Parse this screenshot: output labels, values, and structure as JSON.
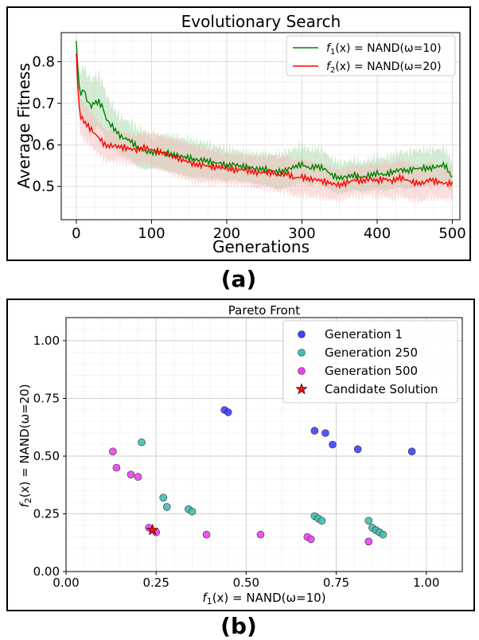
{
  "chart_data": [
    {
      "type": "line",
      "panel_label": "(a)",
      "title": "Evolutionary Search",
      "xlabel": "Generations",
      "ylabel": "Average Fitness",
      "xlim": [
        -20,
        510
      ],
      "ylim": [
        0.42,
        0.87
      ],
      "xticks": [
        0,
        100,
        200,
        300,
        400,
        500
      ],
      "xtick_labels": [
        "0",
        "100",
        "200",
        "300",
        "400",
        "500"
      ],
      "yticks": [
        0.5,
        0.6,
        0.7,
        0.8
      ],
      "ytick_labels": [
        "0.5",
        "0.6",
        "0.7",
        "0.8"
      ],
      "grid": true,
      "legend_position": "top-right",
      "series": [
        {
          "name_prefix": "f",
          "name_sub": "1",
          "name_suffix": "(x) = NAND(ω=10)",
          "color": "#008000",
          "band_color": "#9fd49f",
          "x": [
            0,
            3,
            6,
            10,
            15,
            20,
            25,
            30,
            35,
            40,
            50,
            60,
            70,
            80,
            90,
            100,
            110,
            120,
            130,
            140,
            150,
            160,
            170,
            180,
            190,
            200,
            210,
            220,
            230,
            240,
            250,
            260,
            270,
            280,
            290,
            300,
            310,
            320,
            330,
            340,
            350,
            360,
            370,
            380,
            390,
            400,
            410,
            420,
            430,
            440,
            450,
            460,
            470,
            480,
            490,
            500
          ],
          "y": [
            0.85,
            0.75,
            0.72,
            0.73,
            0.7,
            0.69,
            0.7,
            0.7,
            0.69,
            0.66,
            0.64,
            0.62,
            0.615,
            0.6,
            0.59,
            0.585,
            0.585,
            0.58,
            0.575,
            0.57,
            0.565,
            0.56,
            0.56,
            0.555,
            0.555,
            0.55,
            0.555,
            0.55,
            0.55,
            0.545,
            0.545,
            0.54,
            0.535,
            0.54,
            0.545,
            0.55,
            0.54,
            0.545,
            0.54,
            0.525,
            0.52,
            0.525,
            0.53,
            0.525,
            0.53,
            0.535,
            0.53,
            0.535,
            0.54,
            0.535,
            0.54,
            0.54,
            0.54,
            0.545,
            0.55,
            0.52
          ],
          "band": [
            0.01,
            0.03,
            0.05,
            0.05,
            0.06,
            0.06,
            0.06,
            0.06,
            0.06,
            0.06,
            0.05,
            0.05,
            0.05,
            0.05,
            0.05,
            0.04,
            0.04,
            0.04,
            0.04,
            0.04,
            0.04,
            0.04,
            0.04,
            0.04,
            0.04,
            0.04,
            0.04,
            0.04,
            0.04,
            0.04,
            0.04,
            0.04,
            0.04,
            0.04,
            0.04,
            0.04,
            0.04,
            0.04,
            0.04,
            0.04,
            0.04,
            0.04,
            0.04,
            0.04,
            0.04,
            0.04,
            0.04,
            0.04,
            0.04,
            0.04,
            0.04,
            0.04,
            0.04,
            0.04,
            0.04,
            0.04
          ]
        },
        {
          "name_prefix": "f",
          "name_sub": "2",
          "name_suffix": "(x) = NAND(ω=20)",
          "color": "#ff0000",
          "band_color": "#f7b8b8",
          "x": [
            0,
            3,
            6,
            10,
            15,
            20,
            25,
            30,
            35,
            40,
            50,
            60,
            70,
            80,
            90,
            100,
            110,
            120,
            130,
            140,
            150,
            160,
            170,
            180,
            190,
            200,
            210,
            220,
            230,
            240,
            250,
            260,
            270,
            280,
            290,
            300,
            310,
            320,
            330,
            340,
            350,
            360,
            370,
            380,
            390,
            400,
            410,
            420,
            430,
            440,
            450,
            460,
            470,
            480,
            490,
            500
          ],
          "y": [
            0.82,
            0.7,
            0.67,
            0.66,
            0.65,
            0.64,
            0.63,
            0.62,
            0.61,
            0.6,
            0.6,
            0.595,
            0.59,
            0.585,
            0.59,
            0.585,
            0.58,
            0.575,
            0.57,
            0.565,
            0.56,
            0.555,
            0.555,
            0.55,
            0.55,
            0.545,
            0.54,
            0.54,
            0.535,
            0.53,
            0.53,
            0.53,
            0.525,
            0.53,
            0.52,
            0.525,
            0.52,
            0.52,
            0.515,
            0.51,
            0.505,
            0.51,
            0.515,
            0.51,
            0.515,
            0.51,
            0.515,
            0.51,
            0.52,
            0.515,
            0.51,
            0.51,
            0.52,
            0.515,
            0.51,
            0.51
          ],
          "band": [
            0.01,
            0.03,
            0.04,
            0.04,
            0.04,
            0.04,
            0.04,
            0.04,
            0.04,
            0.04,
            0.04,
            0.04,
            0.04,
            0.04,
            0.04,
            0.04,
            0.04,
            0.04,
            0.04,
            0.04,
            0.04,
            0.04,
            0.04,
            0.04,
            0.04,
            0.04,
            0.04,
            0.04,
            0.04,
            0.04,
            0.04,
            0.04,
            0.04,
            0.04,
            0.04,
            0.04,
            0.04,
            0.04,
            0.04,
            0.04,
            0.04,
            0.04,
            0.04,
            0.04,
            0.04,
            0.04,
            0.04,
            0.04,
            0.04,
            0.04,
            0.04,
            0.04,
            0.04,
            0.04,
            0.04,
            0.04
          ]
        }
      ]
    },
    {
      "type": "scatter",
      "panel_label": "(b)",
      "title": "Pareto Front",
      "xlabel_prefix": "f",
      "xlabel_sub": "1",
      "xlabel_suffix": "(x) = NAND(ω=10)",
      "ylabel_prefix": "f",
      "ylabel_sub": "2",
      "ylabel_suffix": "(x) = NAND(ω=20)",
      "xlim": [
        0.0,
        1.1
      ],
      "ylim": [
        0.0,
        1.1
      ],
      "xticks": [
        0.0,
        0.25,
        0.5,
        0.75,
        1.0
      ],
      "xtick_labels": [
        "0.00",
        "0.25",
        "0.50",
        "0.75",
        "1.00"
      ],
      "yticks": [
        0.0,
        0.25,
        0.5,
        0.75,
        1.0
      ],
      "ytick_labels": [
        "0.00",
        "0.25",
        "0.50",
        "0.75",
        "1.00"
      ],
      "grid": true,
      "legend_position": "top-right",
      "series": [
        {
          "name": "Generation 1",
          "marker": "circle",
          "color": "#4040ff",
          "points": [
            [
              0.44,
              0.7
            ],
            [
              0.45,
              0.69
            ],
            [
              0.69,
              0.61
            ],
            [
              0.72,
              0.6
            ],
            [
              0.74,
              0.55
            ],
            [
              0.81,
              0.53
            ],
            [
              0.96,
              0.52
            ]
          ]
        },
        {
          "name": "Generation 250",
          "marker": "circle",
          "color": "#40c0b0",
          "points": [
            [
              0.21,
              0.56
            ],
            [
              0.27,
              0.32
            ],
            [
              0.28,
              0.28
            ],
            [
              0.34,
              0.27
            ],
            [
              0.35,
              0.26
            ],
            [
              0.69,
              0.24
            ],
            [
              0.7,
              0.23
            ],
            [
              0.71,
              0.22
            ],
            [
              0.84,
              0.22
            ],
            [
              0.85,
              0.19
            ],
            [
              0.86,
              0.18
            ],
            [
              0.87,
              0.17
            ],
            [
              0.88,
              0.16
            ]
          ]
        },
        {
          "name": "Generation 500",
          "marker": "circle",
          "color": "#ee40ee",
          "points": [
            [
              0.13,
              0.52
            ],
            [
              0.14,
              0.45
            ],
            [
              0.18,
              0.42
            ],
            [
              0.2,
              0.41
            ],
            [
              0.23,
              0.19
            ],
            [
              0.25,
              0.17
            ],
            [
              0.39,
              0.16
            ],
            [
              0.54,
              0.16
            ],
            [
              0.67,
              0.15
            ],
            [
              0.68,
              0.14
            ],
            [
              0.84,
              0.13
            ]
          ]
        },
        {
          "name": "Candidate Solution",
          "marker": "star",
          "color": "#ee1010",
          "points": [
            [
              0.24,
              0.18
            ]
          ]
        }
      ]
    }
  ]
}
